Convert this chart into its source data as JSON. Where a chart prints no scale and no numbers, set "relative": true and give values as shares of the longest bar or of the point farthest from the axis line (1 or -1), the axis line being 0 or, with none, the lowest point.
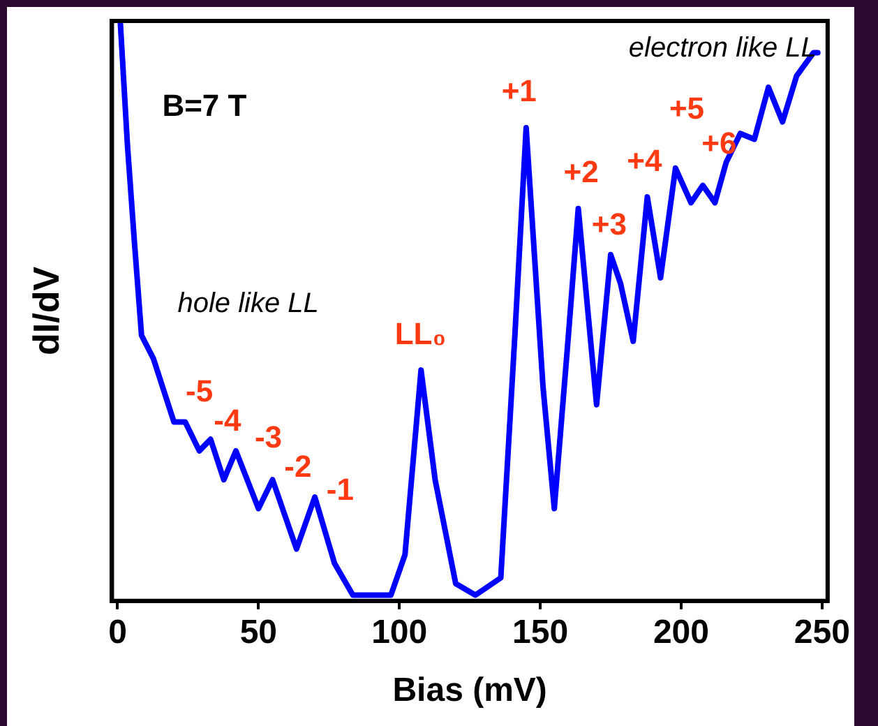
{
  "chart_data": {
    "type": "line",
    "xlabel": "Bias (mV)",
    "ylabel": "dI/dV",
    "relative": true,
    "xlim": [
      -2,
      252
    ],
    "xticks": [
      0,
      50,
      100,
      150,
      200,
      250
    ],
    "tick_labels": "x",
    "grid": false,
    "legend": false,
    "marker": "none",
    "line_style": "solid",
    "series": [
      {
        "color": "#0000ff",
        "x": [
          1,
          3.5,
          6,
          8.5,
          12.7,
          20,
          24,
          29,
          33,
          37.7,
          42,
          50,
          55,
          63.5,
          70,
          77,
          83.5,
          97,
          102,
          107.7,
          112.7,
          120,
          127,
          136,
          141,
          145,
          151,
          155,
          160,
          163.5,
          170,
          175,
          178.5,
          183,
          188,
          192.7,
          198,
          203.5,
          207.7,
          212,
          216,
          221,
          226,
          231,
          236,
          241,
          247,
          248.5
        ],
        "values": [
          1.0,
          0.79,
          0.62,
          0.46,
          0.42,
          0.31,
          0.31,
          0.26,
          0.28,
          0.21,
          0.26,
          0.16,
          0.21,
          0.09,
          0.18,
          0.065,
          0.01,
          0.01,
          0.08,
          0.4,
          0.21,
          0.03,
          0.01,
          0.04,
          0.46,
          0.82,
          0.37,
          0.16,
          0.46,
          0.68,
          0.34,
          0.6,
          0.55,
          0.45,
          0.7,
          0.56,
          0.75,
          0.69,
          0.72,
          0.69,
          0.76,
          0.81,
          0.8,
          0.89,
          0.83,
          0.91,
          0.95,
          0.95
        ]
      }
    ],
    "annotations": [
      "B=7 T",
      "hole like LL",
      "electron like LL",
      "-5",
      "-4",
      "-3",
      "-2",
      "-1",
      "LL₀",
      "+1",
      "+2",
      "+3",
      "+4",
      "+5",
      "+6"
    ]
  }
}
